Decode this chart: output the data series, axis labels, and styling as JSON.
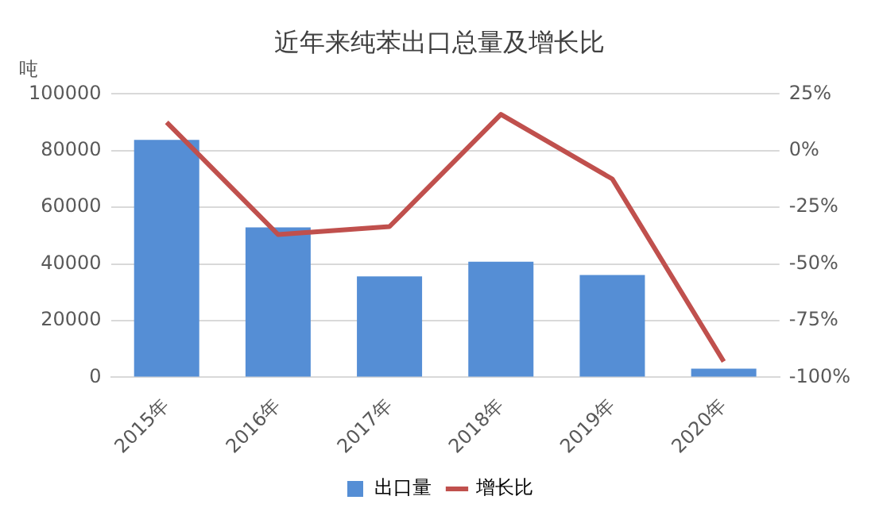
{
  "chart_data": {
    "type": "bar",
    "title": "近年来纯苯出口总量及增长比",
    "ylabel": "吨",
    "categories": [
      "2015年",
      "2016年",
      "2017年",
      "2018年",
      "2019年",
      "2020年"
    ],
    "series": [
      {
        "name": "出口量",
        "color": "#558ed5",
        "values": [
          83800,
          52900,
          35600,
          40800,
          36100,
          3100
        ]
      },
      {
        "name": "增长比",
        "type": "line",
        "axis": "y2",
        "color": "#c0504d",
        "values": [
          12.5,
          -37,
          -33.5,
          16,
          -12.5,
          -93
        ]
      }
    ],
    "ylim": [
      0,
      100000
    ],
    "yticks": [
      0,
      20000,
      40000,
      60000,
      80000,
      100000
    ],
    "y2lim": [
      -100,
      25
    ],
    "y2ticks": [
      {
        "value": -100,
        "label": "-100%"
      },
      {
        "value": -75,
        "label": "-75%"
      },
      {
        "value": -50,
        "label": "-50%"
      },
      {
        "value": -25,
        "label": "-25%"
      },
      {
        "value": 0,
        "label": "0%"
      },
      {
        "value": 25,
        "label": "25%"
      }
    ],
    "grid": "y",
    "legend": "bottom",
    "marker": "none",
    "line_style": "solid"
  }
}
